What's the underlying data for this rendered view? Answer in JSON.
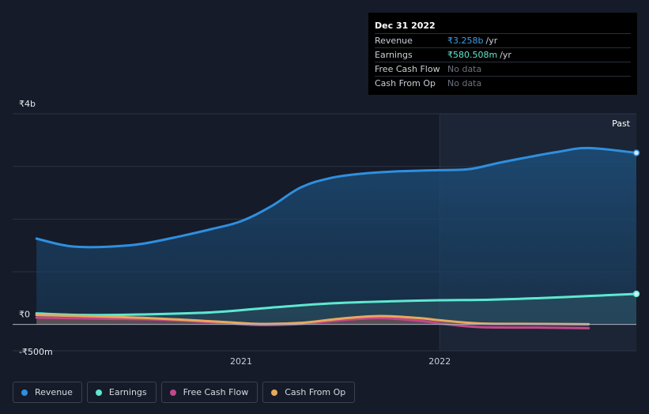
{
  "tooltip": {
    "date": "Dec 31 2022",
    "rows": [
      {
        "label": "Revenue",
        "value": "₹3.258b",
        "unit": "/yr",
        "color": "#3b9fe8"
      },
      {
        "label": "Earnings",
        "value": "₹580.508m",
        "unit": "/yr",
        "color": "#5ee8d0"
      },
      {
        "label": "Free Cash Flow",
        "value": "No data",
        "unit": "",
        "color": "#6b7280"
      },
      {
        "label": "Cash From Op",
        "value": "No data",
        "unit": "",
        "color": "#6b7280"
      }
    ]
  },
  "legend": [
    {
      "label": "Revenue",
      "color": "#2f8fe0"
    },
    {
      "label": "Earnings",
      "color": "#5ee8d0"
    },
    {
      "label": "Free Cash Flow",
      "color": "#c2478a"
    },
    {
      "label": "Cash From Op",
      "color": "#e8a95c"
    }
  ],
  "chart_data": {
    "type": "area",
    "title": "",
    "xlabel": "",
    "ylabel": "",
    "past_label": "Past",
    "x_ticks": [
      {
        "value": 2021.0,
        "label": "2021"
      },
      {
        "value": 2022.0,
        "label": "2022"
      }
    ],
    "y_tick_labels": [
      {
        "value": 4000,
        "label": "₹4b"
      },
      {
        "value": 0,
        "label": "₹0"
      },
      {
        "value": -500,
        "label": "-₹500m"
      }
    ],
    "ylim": [
      -500,
      4000
    ],
    "xlim": [
      2019.85,
      2022.99
    ],
    "gridlines_y": [
      3000,
      2000,
      1000
    ],
    "past_start": 2022.0,
    "units": "₹m",
    "series": [
      {
        "name": "Revenue",
        "color": "#2f8fe0",
        "x": [
          2019.97,
          2020.1,
          2020.2,
          2020.35,
          2020.5,
          2020.7,
          2020.85,
          2021.0,
          2021.15,
          2021.3,
          2021.45,
          2021.6,
          2021.75,
          2021.9,
          2022.0,
          2022.15,
          2022.3,
          2022.45,
          2022.6,
          2022.75,
          2022.99
        ],
        "values": [
          1630,
          1510,
          1470,
          1480,
          1530,
          1680,
          1810,
          1960,
          2240,
          2600,
          2780,
          2860,
          2900,
          2920,
          2930,
          2950,
          3070,
          3180,
          3280,
          3350,
          3258
        ]
      },
      {
        "name": "Earnings",
        "color": "#5ee8d0",
        "x": [
          2019.97,
          2020.2,
          2020.5,
          2020.85,
          2021.15,
          2021.45,
          2021.75,
          2022.0,
          2022.25,
          2022.5,
          2022.75,
          2022.99
        ],
        "values": [
          210,
          180,
          190,
          230,
          320,
          400,
          440,
          460,
          470,
          500,
          540,
          580
        ]
      },
      {
        "name": "Free Cash Flow",
        "color": "#c2478a",
        "x": [
          2019.97,
          2020.3,
          2020.6,
          2020.9,
          2021.1,
          2021.3,
          2021.5,
          2021.7,
          2021.9,
          2022.0,
          2022.2,
          2022.5,
          2022.75
        ],
        "values": [
          130,
          110,
          90,
          30,
          -10,
          10,
          80,
          120,
          70,
          20,
          -50,
          -60,
          -70
        ]
      },
      {
        "name": "Cash From Op",
        "color": "#e8a95c",
        "x": [
          2019.97,
          2020.3,
          2020.6,
          2020.9,
          2021.1,
          2021.3,
          2021.5,
          2021.7,
          2021.9,
          2022.0,
          2022.2,
          2022.5,
          2022.75
        ],
        "values": [
          180,
          150,
          110,
          50,
          10,
          30,
          110,
          160,
          120,
          80,
          20,
          10,
          5
        ]
      }
    ]
  }
}
